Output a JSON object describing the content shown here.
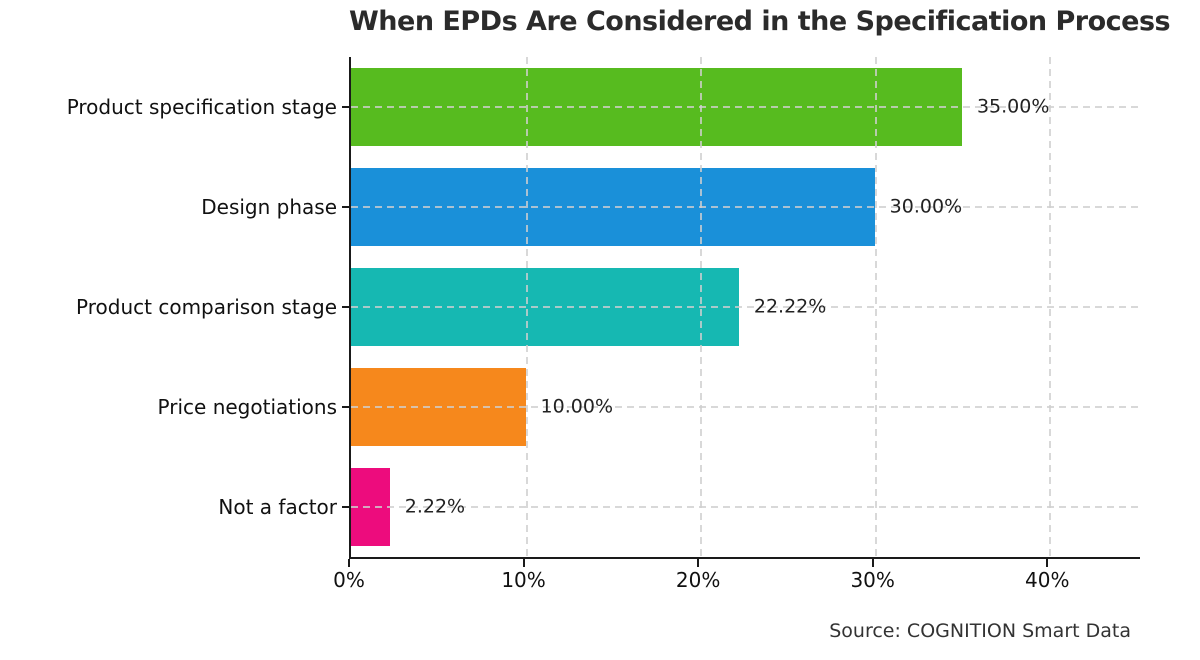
{
  "chart_data": {
    "type": "bar",
    "orientation": "horizontal",
    "title": "When EPDs Are Considered in the Specification Process",
    "categories": [
      "Product specification stage",
      "Design phase",
      "Product comparison stage",
      "Price negotiations",
      "Not a factor"
    ],
    "values": [
      35.0,
      30.0,
      22.22,
      10.0,
      2.22
    ],
    "value_labels": [
      "35.00%",
      "30.00%",
      "22.22%",
      "10.00%",
      "2.22%"
    ],
    "bar_colors": [
      "#57bb1f",
      "#1a90d9",
      "#16b8b2",
      "#f6881c",
      "#ed0c7d"
    ],
    "x_tick_labels": [
      "0%",
      "10%",
      "20%",
      "30%",
      "40%"
    ],
    "x_tick_values": [
      0,
      10,
      20,
      30,
      40
    ],
    "xlim": [
      0,
      45.2
    ],
    "grid": "dashed-both-directions",
    "legend": "none",
    "background": "#ffffff",
    "source": "Source: COGNITION Smart Data"
  }
}
